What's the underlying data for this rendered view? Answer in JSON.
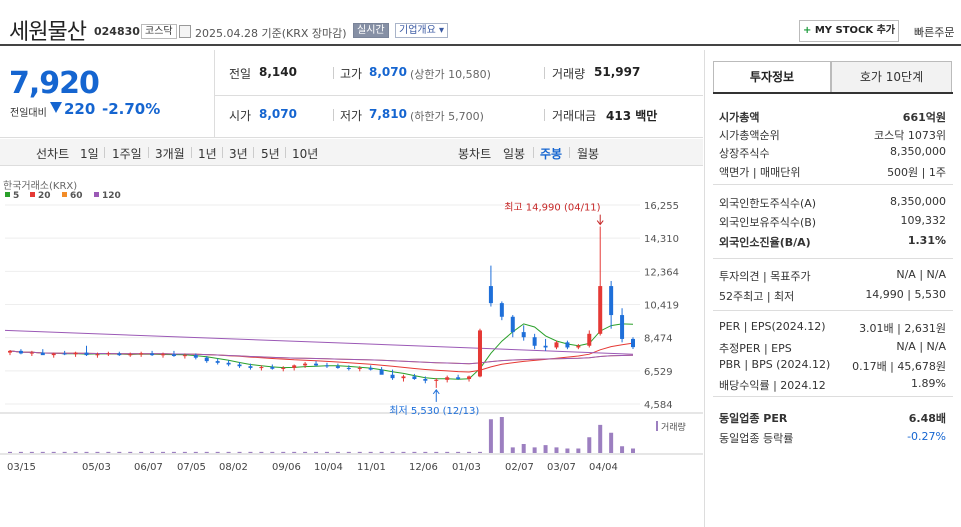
{
  "header": {
    "company_name": "세원물산",
    "stock_code": "024830",
    "market_tag": "코스닥",
    "date_text": "2025.04.28  기준(KRX 장마감)",
    "realtime_label": "실시간",
    "company_info_label": "기업개요",
    "mystock_label": "MY STOCK 추가",
    "quick_order_label": "빠른주문"
  },
  "quote": {
    "current_price": "7,920",
    "change_label": "전일대비",
    "change_value": "220",
    "change_pct": "-2.70%",
    "prev_close_label": "전일",
    "prev_close": "8,140",
    "high_label": "고가",
    "high": "8,070",
    "upper_limit": "(상한가 10,580)",
    "volume_label": "거래량",
    "volume": "51,997",
    "open_label": "시가",
    "open": "8,070",
    "low_label": "저가",
    "low": "7,810",
    "lower_limit": "(하한가 5,700)",
    "amount_label": "거래대금",
    "amount": "413 백만"
  },
  "periods": {
    "line_chart": "선차트",
    "items": [
      "1일",
      "1주일",
      "3개월",
      "1년",
      "3년",
      "5년",
      "10년"
    ],
    "candle_chart": "봉차트",
    "candle_items": [
      "일봉",
      "주봉",
      "월봉"
    ],
    "active": "주봉"
  },
  "chart_data": {
    "type": "candlestick",
    "source_label": "한국거래소(KRX)",
    "legend": [
      {
        "name": "5",
        "color": "#2aa02a"
      },
      {
        "name": "20",
        "color": "#e53935"
      },
      {
        "name": "60",
        "color": "#f28c28"
      },
      {
        "name": "120",
        "color": "#9b59b6"
      }
    ],
    "y_ticks": [
      "16,255",
      "14,310",
      "12,364",
      "10,419",
      "8,474",
      "6,529",
      "4,584"
    ],
    "ylim": [
      4584,
      16255
    ],
    "x_ticks": [
      "03/15",
      "05/03",
      "06/07",
      "07/05",
      "08/02",
      "09/06",
      "10/04",
      "11/01",
      "12/06",
      "01/03",
      "02/07",
      "03/07",
      "04/04"
    ],
    "high_annotation": "최고 14,990 (04/11)",
    "low_annotation": "최저 5,530 (12/13)",
    "volume_label": "거래량",
    "weeks": [
      [
        7600,
        7750,
        7450,
        7700
      ],
      [
        7700,
        7800,
        7500,
        7550
      ],
      [
        7550,
        7700,
        7400,
        7600
      ],
      [
        7600,
        7800,
        7500,
        7450
      ],
      [
        7450,
        7600,
        7300,
        7550
      ],
      [
        7550,
        7700,
        7450,
        7500
      ],
      [
        7500,
        7650,
        7350,
        7600
      ],
      [
        7600,
        8000,
        7400,
        7450
      ],
      [
        7450,
        7600,
        7300,
        7500
      ],
      [
        7500,
        7650,
        7400,
        7550
      ],
      [
        7550,
        7650,
        7400,
        7450
      ],
      [
        7450,
        7600,
        7350,
        7500
      ],
      [
        7500,
        7650,
        7350,
        7550
      ],
      [
        7550,
        7700,
        7400,
        7450
      ],
      [
        7450,
        7600,
        7300,
        7500
      ],
      [
        7500,
        7700,
        7350,
        7400
      ],
      [
        7400,
        7550,
        7250,
        7450
      ],
      [
        7450,
        7550,
        7200,
        7300
      ],
      [
        7300,
        7400,
        7000,
        7100
      ],
      [
        7100,
        7250,
        6900,
        7000
      ],
      [
        7000,
        7150,
        6800,
        6900
      ],
      [
        6900,
        7050,
        6700,
        6800
      ],
      [
        6800,
        6950,
        6600,
        6700
      ],
      [
        6700,
        6850,
        6550,
        6750
      ],
      [
        6750,
        6900,
        6600,
        6650
      ],
      [
        6650,
        6800,
        6500,
        6700
      ],
      [
        6700,
        6900,
        6550,
        6850
      ],
      [
        6850,
        7050,
        6700,
        6950
      ],
      [
        6950,
        7100,
        6800,
        6850
      ],
      [
        6850,
        7000,
        6700,
        6800
      ],
      [
        6800,
        6950,
        6650,
        6700
      ],
      [
        6700,
        6850,
        6550,
        6650
      ],
      [
        6650,
        6800,
        6500,
        6700
      ],
      [
        6700,
        6850,
        6550,
        6600
      ],
      [
        6600,
        6750,
        6400,
        6300
      ],
      [
        6300,
        6600,
        6000,
        6100
      ],
      [
        6100,
        6300,
        5900,
        6200
      ],
      [
        6200,
        6350,
        6000,
        6050
      ],
      [
        6050,
        6200,
        5800,
        5950
      ],
      [
        5950,
        6100,
        5530,
        6000
      ],
      [
        6000,
        6250,
        5850,
        6150
      ],
      [
        6150,
        6300,
        6000,
        6050
      ],
      [
        6050,
        6250,
        5900,
        6200
      ],
      [
        6200,
        9000,
        6150,
        8900
      ],
      [
        11500,
        12700,
        10300,
        10500
      ],
      [
        10500,
        10600,
        9500,
        9700
      ],
      [
        9700,
        9800,
        8500,
        8800
      ],
      [
        8800,
        9200,
        8300,
        8500
      ],
      [
        8500,
        8700,
        7800,
        8000
      ],
      [
        8000,
        8400,
        7700,
        7900
      ],
      [
        7900,
        8300,
        7800,
        8200
      ],
      [
        8200,
        8300,
        7800,
        7900
      ],
      [
        7900,
        8100,
        7800,
        8000
      ],
      [
        8000,
        8900,
        7900,
        8700
      ],
      [
        8700,
        14990,
        8600,
        11500
      ],
      [
        11500,
        11800,
        9000,
        9800
      ],
      [
        9800,
        10200,
        8200,
        8400
      ],
      [
        8400,
        8500,
        7810,
        7920
      ]
    ],
    "volumes": [
      1,
      1,
      1,
      1,
      1,
      1,
      1,
      1,
      1,
      1,
      1,
      1,
      1,
      1,
      1,
      1,
      1,
      1,
      1,
      1,
      1,
      1,
      1,
      1,
      1,
      1,
      1,
      1,
      1,
      1,
      1,
      1,
      1,
      1,
      1,
      1,
      1,
      1,
      1,
      1,
      1,
      1,
      1,
      1,
      30,
      32,
      5,
      8,
      5,
      7,
      5,
      4,
      4,
      14,
      25,
      18,
      6,
      4
    ]
  },
  "right_panel": {
    "tab_invest": "투자정보",
    "tab_hoga": "호가 10단계",
    "rows1": [
      {
        "label": "시가총액",
        "value": "661억원",
        "bold": true
      },
      {
        "label": "시가총액순위",
        "value": "코스닥 1073위"
      },
      {
        "label": "상장주식수",
        "value": "8,350,000"
      },
      {
        "label": "액면가 | 매매단위",
        "value": "500원 | 1주"
      }
    ],
    "rows2": [
      {
        "label": "외국인한도주식수(A)",
        "value": "8,350,000"
      },
      {
        "label": "외국인보유주식수(B)",
        "value": "109,332"
      },
      {
        "label": "외국인소진율(B/A)",
        "value": "1.31%",
        "bold": true
      }
    ],
    "rows3": [
      {
        "label": "투자의견 | 목표주가",
        "value": "N/A | N/A"
      },
      {
        "label": "52주최고 | 최저",
        "value": "14,990 | 5,530"
      }
    ],
    "rows4": [
      {
        "label": "PER | EPS(2024.12)",
        "value": "3.01배 | 2,631원"
      },
      {
        "label": "추정PER | EPS",
        "value": "N/A | N/A"
      },
      {
        "label": "PBR | BPS (2024.12)",
        "value": "0.17배 | 45,678원"
      },
      {
        "label": "배당수익률 | 2024.12",
        "value": "1.89%"
      }
    ],
    "rows5": [
      {
        "label": "동일업종 PER",
        "value": "6.48배",
        "bold": true
      },
      {
        "label": "동일업종 등락률",
        "value": "-0.27%",
        "color": "#1565d0"
      }
    ]
  }
}
